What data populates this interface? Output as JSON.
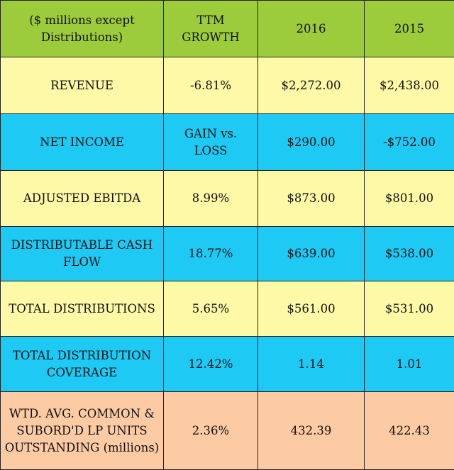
{
  "colors": {
    "header_bg": "#9ccb3b",
    "yellow_row": "#fdf9a6",
    "blue_row": "#1ec9f4",
    "peach_row": "#fccba4",
    "border": "#222222"
  },
  "header": {
    "label": "($ millions except\nDistributions)",
    "growth": "TTM GROWTH",
    "y2016": "2016",
    "y2015": "2015"
  },
  "rows": [
    {
      "label": "REVENUE",
      "growth": "-6.81%",
      "y2016": "$2,272.00",
      "y2015": "$2,438.00"
    },
    {
      "label": "NET INCOME",
      "growth": "GAIN vs. LOSS",
      "y2016": "$290.00",
      "y2015": "-$752.00"
    },
    {
      "label": "ADJUSTED  EBITDA",
      "growth": "8.99%",
      "y2016": "$873.00",
      "y2015": "$801.00"
    },
    {
      "label": "DISTRIBUTABLE CASH\nFLOW",
      "growth": "18.77%",
      "y2016": "$639.00",
      "y2015": "$538.00"
    },
    {
      "label": "TOTAL DISTRIBUTIONS",
      "growth": "5.65%",
      "y2016": "$561.00",
      "y2015": "$531.00"
    },
    {
      "label": "TOTAL DISTRIBUTION\nCOVERAGE",
      "growth": "12.42%",
      "y2016": "1.14",
      "y2015": "1.01"
    },
    {
      "label": "WTD. AVG. COMMON &\nSUBORD'D  LP UNITS\nOUTSTANDING (millions)",
      "growth": "2.36%",
      "y2016": "432.39",
      "y2015": "422.43"
    }
  ]
}
